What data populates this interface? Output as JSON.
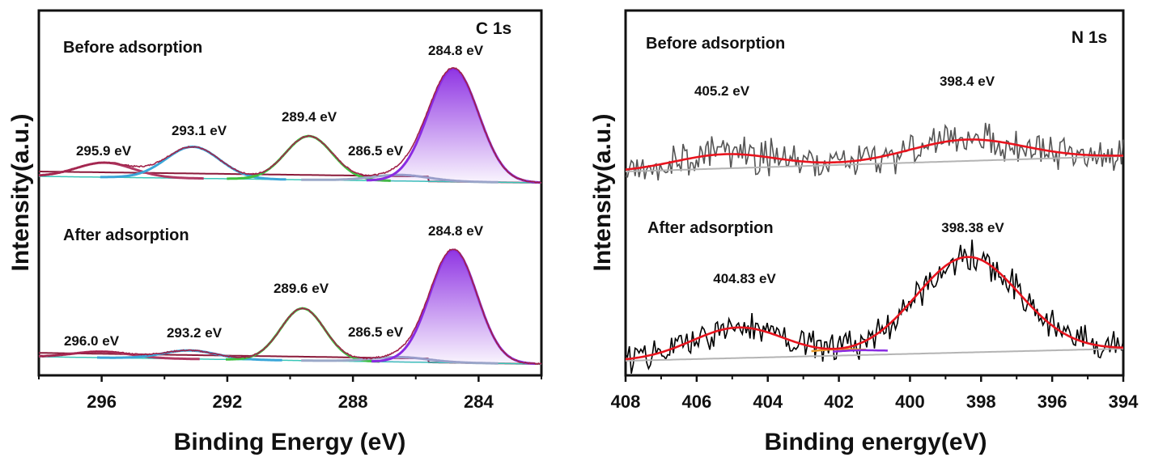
{
  "chart_data": [
    {
      "type": "line",
      "title": "C 1s",
      "xlabel": "Binding Energy (eV)",
      "ylabel": "Intensity(a.u.)",
      "xlim": [
        298,
        282
      ],
      "x_reversed": true,
      "xticks": [
        "296",
        "292",
        "288",
        "284"
      ],
      "xtick_values": [
        296,
        292,
        288,
        284
      ],
      "panels": [
        {
          "label": "Before adsorption",
          "peaks": [
            {
              "center": 295.9,
              "label": "295.9 eV",
              "height": 0.12,
              "width": 0.9,
              "color": "#b03a64"
            },
            {
              "center": 293.1,
              "label": "293.1 eV",
              "height": 0.26,
              "width": 0.85,
              "color": "#3aa6d8"
            },
            {
              "center": 289.4,
              "label": "289.4 eV",
              "height": 0.36,
              "width": 0.75,
              "color": "#3fbf3f"
            },
            {
              "center": 286.5,
              "label": "286.5 eV",
              "height": 0.05,
              "width": 0.9,
              "color": "#9aa8c8"
            },
            {
              "center": 284.8,
              "label": "284.8 eV",
              "height": 0.93,
              "width": 0.8,
              "color": "#8a2be2"
            }
          ]
        },
        {
          "label": "After adsorption",
          "peaks": [
            {
              "center": 296.0,
              "label": "296.0 eV",
              "height": 0.05,
              "width": 0.9,
              "color": "#b03a64"
            },
            {
              "center": 293.2,
              "label": "293.2 eV",
              "height": 0.07,
              "width": 0.85,
              "color": "#3aa6d8"
            },
            {
              "center": 289.6,
              "label": "289.6 eV",
              "height": 0.43,
              "width": 0.7,
              "color": "#3fbf3f"
            },
            {
              "center": 286.5,
              "label": "286.5 eV",
              "height": 0.04,
              "width": 0.9,
              "color": "#9aa8c8"
            },
            {
              "center": 284.8,
              "label": "284.8 eV",
              "height": 0.93,
              "width": 0.75,
              "color": "#8a2be2"
            }
          ]
        }
      ]
    },
    {
      "type": "line",
      "title": "N 1s",
      "xlabel": "Binding energy(eV)",
      "ylabel": "Intensity(a.u.)",
      "xlim": [
        408,
        394
      ],
      "x_reversed": true,
      "xticks": [
        "408",
        "406",
        "404",
        "402",
        "400",
        "398",
        "396",
        "394"
      ],
      "xtick_values": [
        408,
        406,
        404,
        402,
        400,
        398,
        396,
        394
      ],
      "panels": [
        {
          "label": "Before adsorption",
          "data_color": "#555555",
          "peaks": [
            {
              "center": 405.2,
              "label": "405.2 eV",
              "height": 0.22,
              "width": 1.4
            },
            {
              "center": 398.4,
              "label": "398.4 eV",
              "height": 0.33,
              "width": 1.6
            }
          ]
        },
        {
          "label": "After adsorption",
          "data_color": "#000000",
          "peaks": [
            {
              "center": 404.83,
              "label": "404.83 eV",
              "height": 0.32,
              "width": 1.3
            },
            {
              "center": 398.38,
              "label": "398.38 eV",
              "height": 1.0,
              "width": 1.45
            }
          ]
        }
      ]
    }
  ],
  "colors": {
    "envelope": "#e8141e",
    "fit_purple": "#8a2be2",
    "baseline": "#b4b4b4",
    "orange": "#e89a2c"
  }
}
